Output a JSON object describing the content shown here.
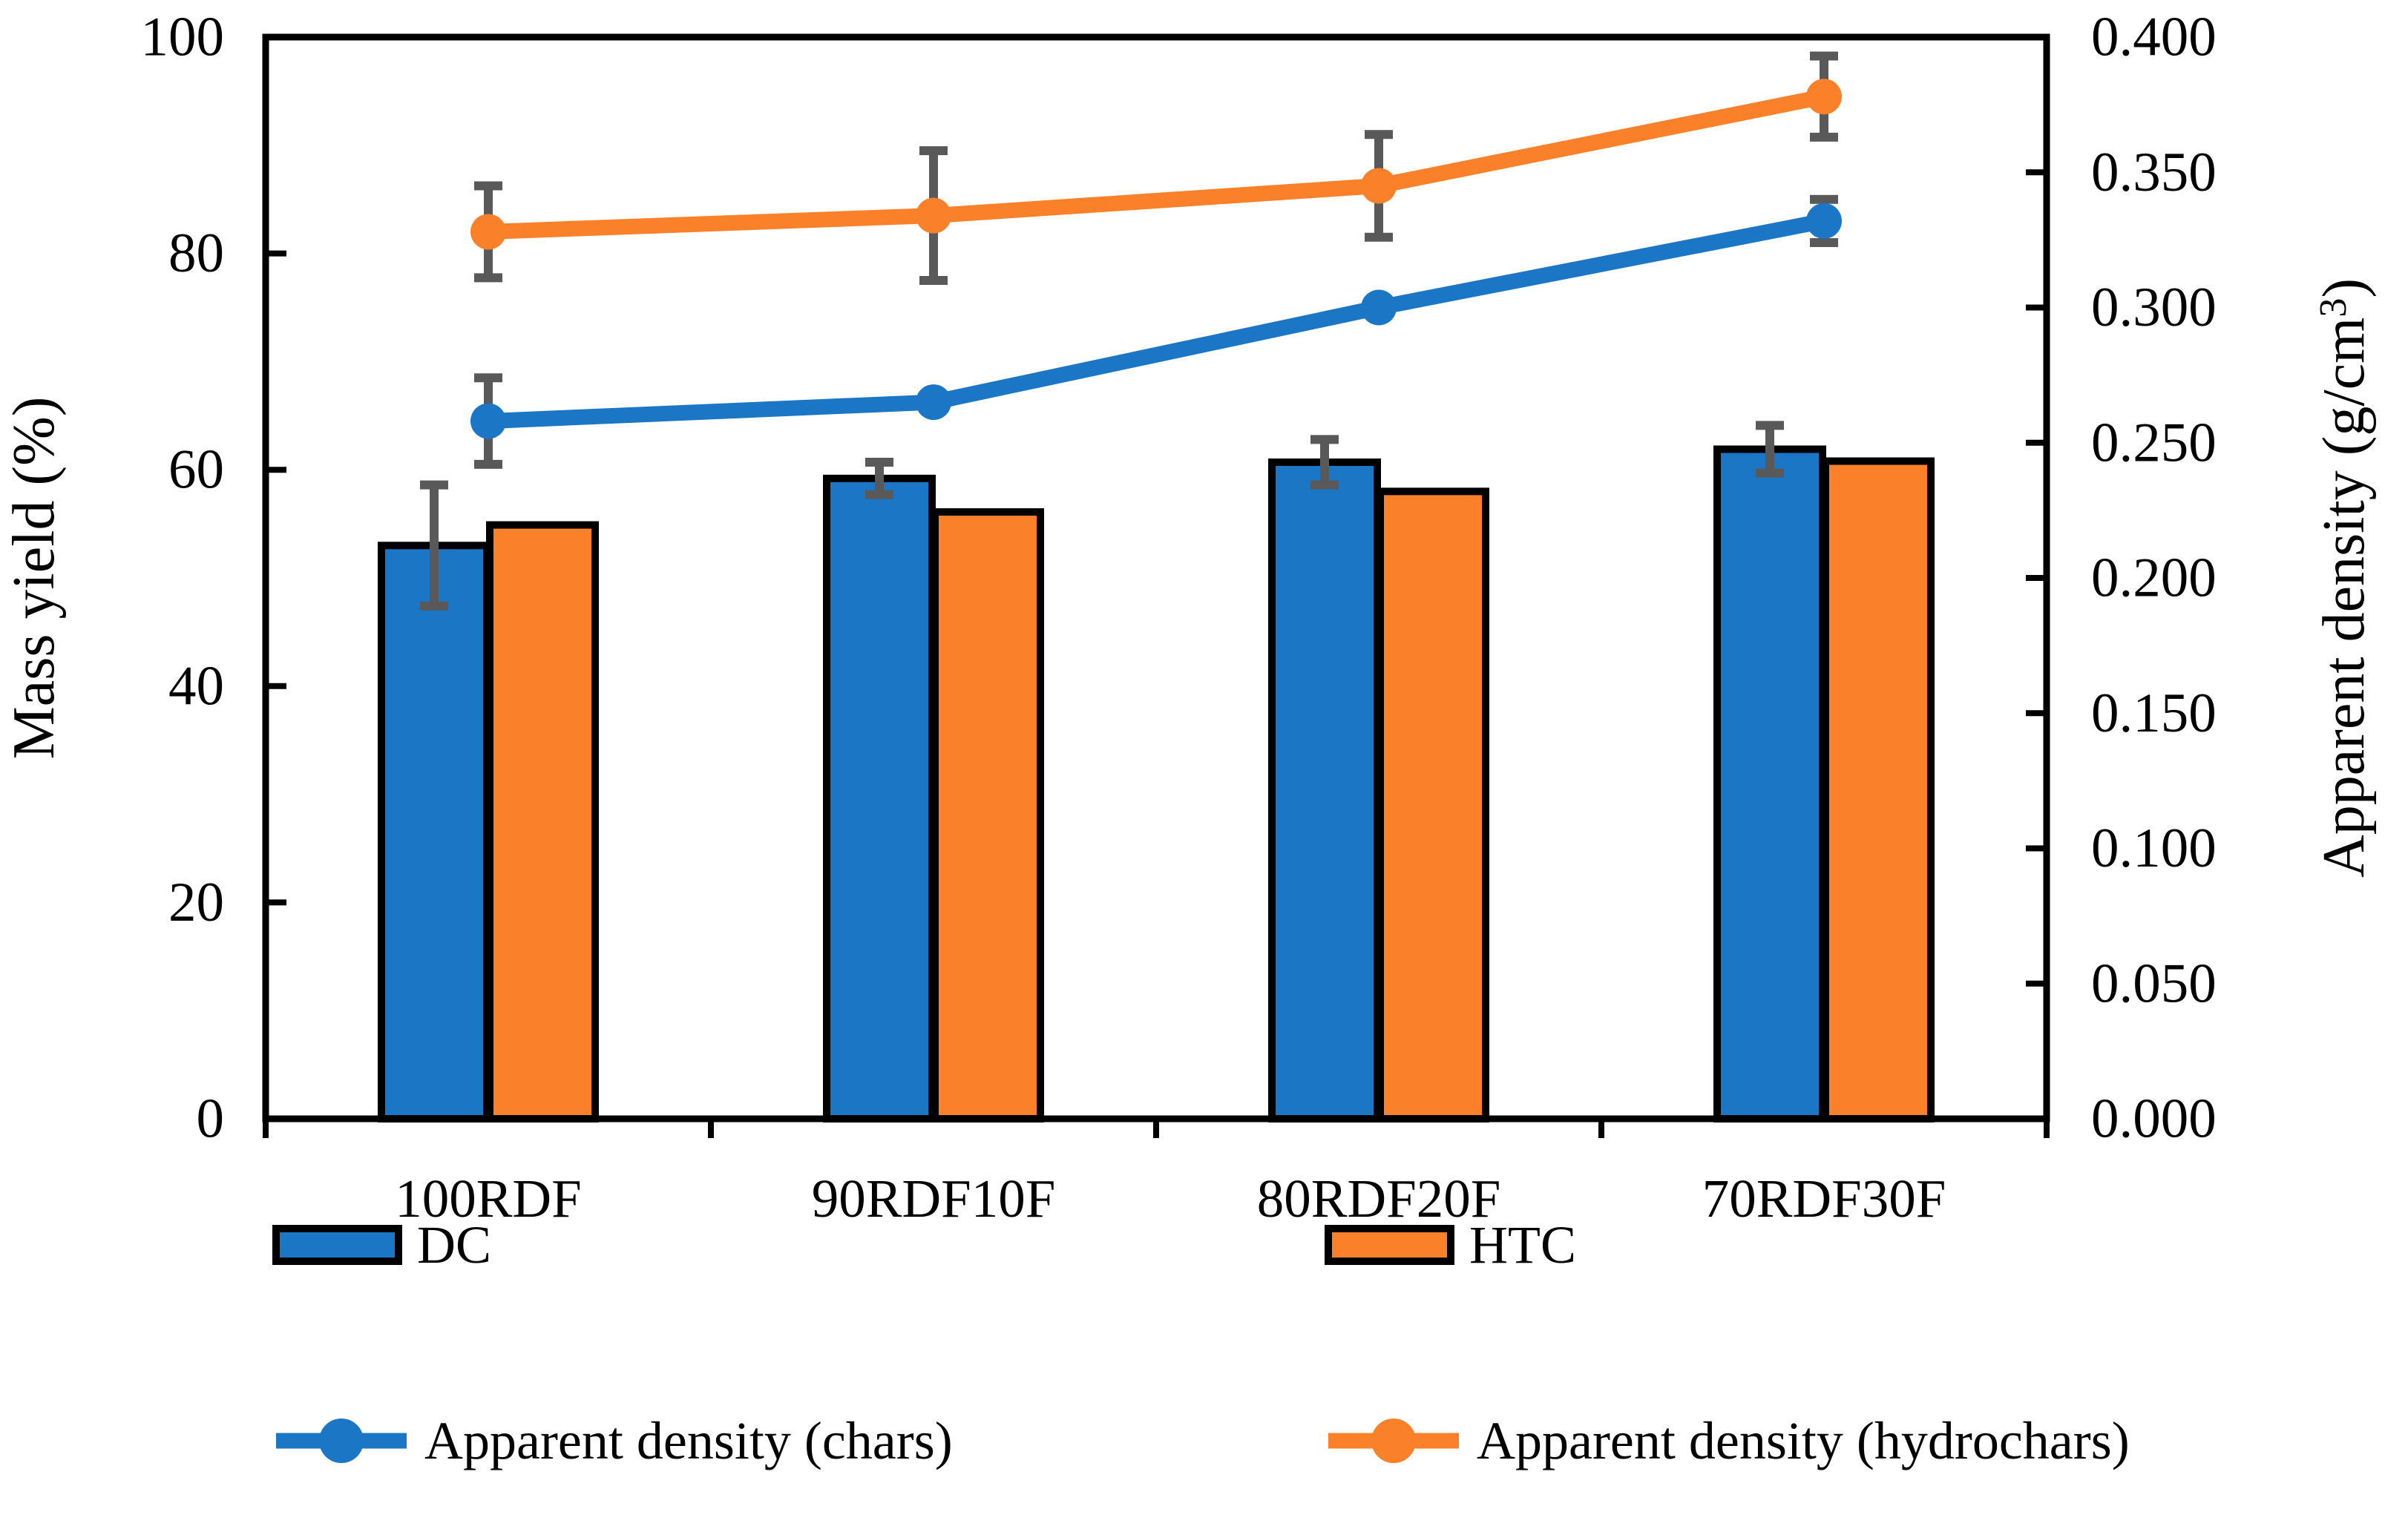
{
  "chart_data": {
    "type": "bar+line",
    "title": "",
    "categories": [
      "100RDF",
      "90RDF10F",
      "80RDF20F",
      "70RDF30F"
    ],
    "left_axis": {
      "label": "Mass yield (%)",
      "min": 0,
      "max": 100,
      "step": 20,
      "ticks": [
        "100",
        "80",
        "60",
        "40",
        "20",
        "0"
      ]
    },
    "right_axis": {
      "label": "Apparent density (g/cm³)",
      "label_parts": {
        "pre": "Apparent density (g/cm",
        "sup": "3",
        "post": ")"
      },
      "min": 0.0,
      "max": 0.4,
      "step": 0.05,
      "ticks": [
        "0.400",
        "0.350",
        "0.300",
        "0.250",
        "0.200",
        "0.150",
        "0.100",
        "0.050",
        "0.000"
      ]
    },
    "bar_series": [
      {
        "name": "DC",
        "axis": "left",
        "color": "#1B76C5",
        "values": [
          53.0,
          59.2,
          60.7,
          61.9
        ],
        "errors": [
          5.6,
          1.5,
          2.1,
          2.2
        ]
      },
      {
        "name": "HTC",
        "axis": "left",
        "color": "#FA8029",
        "values": [
          54.9,
          56.1,
          58.0,
          60.8
        ],
        "errors": [
          0,
          0,
          0,
          0
        ]
      }
    ],
    "line_series": [
      {
        "name": "Apparent density (chars)",
        "axis": "right",
        "color": "#1B76C5",
        "values": [
          0.258,
          0.265,
          0.3,
          0.332
        ],
        "errors": [
          0.016,
          0,
          0,
          0.008
        ]
      },
      {
        "name": "Apparent density (hydrochars)",
        "axis": "right",
        "color": "#FA8029",
        "values": [
          0.328,
          0.334,
          0.345,
          0.378
        ],
        "errors": [
          0.017,
          0.024,
          0.019,
          0.015
        ]
      }
    ],
    "legend": {
      "position": "below",
      "items": [
        {
          "label": "DC",
          "swatch": "rect",
          "color": "#1B76C5"
        },
        {
          "label": "HTC",
          "swatch": "rect",
          "color": "#FA8029"
        },
        {
          "label": "Apparent density (chars)",
          "swatch": "line-marker",
          "color": "#1B76C5"
        },
        {
          "label": "Apparent density (hydrochars)",
          "swatch": "line-marker",
          "color": "#FA8029"
        }
      ]
    },
    "error_bar_color": "#595959",
    "grid": false
  }
}
